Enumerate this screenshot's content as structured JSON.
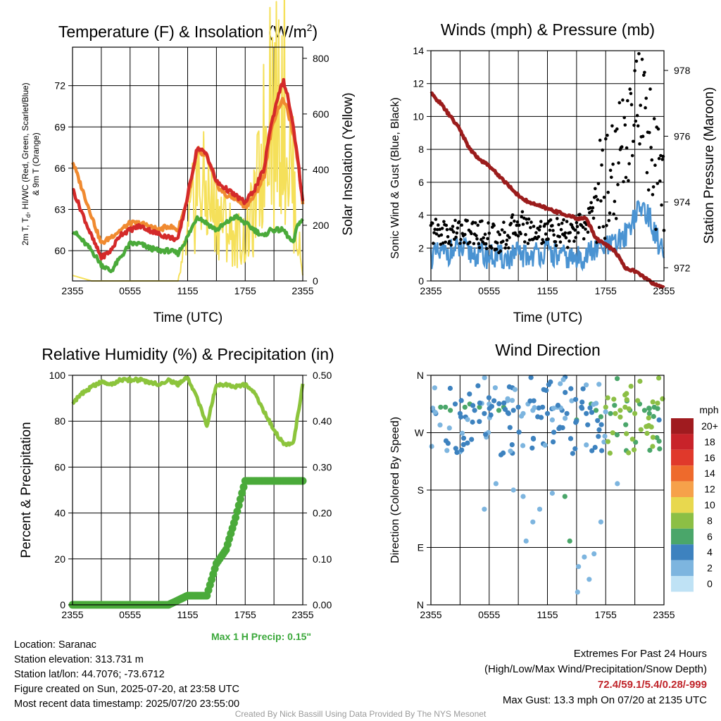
{
  "panels": {
    "temp": {
      "title": "Temperature (F) & Insolation (W/m",
      "title_sup": "2",
      "title_close": ")",
      "ylabel_line1": "2m T, T",
      "ylabel_sub": "d",
      "ylabel_line1_rest": ", HI/WC (Red, Green, Scarlet/Blue)",
      "ylabel_line2": "& 9m T (Orange)",
      "y2label": "Solar Insolation (Yellow)",
      "xlabel": "Time (UTC)",
      "yticks": [
        "72",
        "69",
        "66",
        "63",
        "60"
      ],
      "y2ticks": [
        "800",
        "600",
        "400",
        "200",
        "0"
      ],
      "xticks": [
        "2355",
        "0555",
        "1155",
        "1755",
        "2355"
      ]
    },
    "wind": {
      "title": "Winds (mph) & Pressure (mb)",
      "ylabel": "Sonic Wind & Gust (Blue, Black)",
      "y2label": "Station Pressure (Maroon)",
      "xlabel": "Time (UTC)",
      "yticks": [
        "14",
        "12",
        "10",
        "8",
        "6",
        "4",
        "2",
        "0"
      ],
      "y2ticks": [
        "978",
        "976",
        "974",
        "972"
      ],
      "xticks": [
        "2355",
        "0555",
        "1155",
        "1755",
        "2355"
      ]
    },
    "rh": {
      "title": "Relative Humidity (%) & Precipitation (in)",
      "ylabel": "Percent & Precipitation",
      "yticks": [
        "100",
        "80",
        "60",
        "40",
        "20",
        "0"
      ],
      "y2ticks": [
        "0.50",
        "0.40",
        "0.30",
        "0.20",
        "0.10",
        "0.00"
      ],
      "xticks": [
        "2355",
        "0555",
        "1155",
        "1755",
        "2355"
      ],
      "precip_note": "Max 1 H Precip: 0.15\""
    },
    "dir": {
      "title": "Wind Direction",
      "ylabel": "Direction (Colored By Speed)",
      "yticks": [
        "N",
        "W",
        "S",
        "E",
        "N"
      ],
      "xticks": [
        "2355",
        "0555",
        "1155",
        "1755",
        "2355"
      ],
      "legend_title": "mph",
      "legend_labels": [
        "20+",
        "18",
        "16",
        "14",
        "12",
        "10",
        "8",
        "6",
        "4",
        "2",
        "0"
      ],
      "legend_colors": [
        "#a01b1f",
        "#c8232a",
        "#e0392b",
        "#ee6a2c",
        "#f6a14a",
        "#e8d84e",
        "#8cbf45",
        "#4aa66a",
        "#3d82bf",
        "#7db5df",
        "#bfe2f5"
      ]
    }
  },
  "footer": {
    "location": "Location: Saranac",
    "elevation": "Station elevation: 313.731 m",
    "latlon": "Station lat/lon: 44.7076; -73.6712",
    "created": "Figure created on Sun, 2025-07-20, at 23:58 UTC",
    "recent": "Most recent data timestamp: 2025/07/20 23:55:00",
    "extremes_title": "Extremes For Past 24 Hours",
    "extremes_sub": "(High/Low/Max Wind/Precipitation/Snow Depth)",
    "extremes_values": "72.4/59.1/5.4/0.28/-999",
    "max_gust": "Max Gust: 13.3 mph On 07/20 at 2135 UTC",
    "credit": "Created By Nick Bassill Using Data Provided By The NYS Mesonet"
  },
  "colors": {
    "temp": "#d42a2a",
    "temp9m": "#f08a30",
    "dewpoint": "#4aaa3a",
    "solar": "#f5e05a",
    "wind": "#4a93d2",
    "gust": "#000000",
    "pressure": "#9b1c1c",
    "rh": "#8cc43c",
    "precip": "#4aaa3a"
  },
  "chart_data": [
    {
      "type": "line",
      "title": "Temperature (F) & Insolation (W/m2)",
      "xlabel": "Time (UTC)",
      "ylabel": "2m T, Td, HI/WC (Red, Green, Scarlet/Blue) & 9m T (Orange)",
      "y2label": "Solar Insolation (Yellow)",
      "x": [
        0,
        2,
        3,
        4,
        5,
        6,
        7,
        8,
        9,
        10,
        11,
        12,
        13,
        14,
        15,
        16,
        17,
        18,
        19,
        20,
        20.5,
        21,
        21.5,
        22,
        22.5,
        23,
        23.5,
        24
      ],
      "x_unit": "hours since 2355 UTC",
      "ylim": [
        57.8,
        74.8
      ],
      "y2lim": [
        0,
        840
      ],
      "series": [
        {
          "name": "2m T",
          "axis": "left",
          "values": [
            64.5,
            61.0,
            59.5,
            60.0,
            61.2,
            61.5,
            61.8,
            61.5,
            61.2,
            61.0,
            60.8,
            64.0,
            67.5,
            67.0,
            65.0,
            64.5,
            64.0,
            63.5,
            64.5,
            66.0,
            68.5,
            70.0,
            71.5,
            72.3,
            71.0,
            69.0,
            66.5,
            63.5
          ]
        },
        {
          "name": "9m T",
          "axis": "left",
          "values": [
            66.5,
            62.5,
            60.5,
            61.0,
            61.5,
            62.0,
            62.0,
            61.8,
            61.5,
            61.8,
            61.5,
            63.8,
            67.2,
            66.8,
            64.8,
            64.0,
            63.8,
            63.2,
            64.0,
            65.5,
            68.0,
            69.5,
            70.5,
            71.0,
            70.0,
            68.5,
            66.5,
            63.5
          ]
        },
        {
          "name": "Td",
          "axis": "left",
          "values": [
            61.5,
            60.0,
            59.0,
            58.5,
            59.5,
            60.5,
            60.5,
            60.2,
            60.0,
            60.0,
            59.8,
            61.0,
            62.5,
            62.0,
            61.5,
            62.0,
            62.5,
            62.0,
            61.5,
            61.0,
            61.5,
            61.5,
            61.5,
            61.5,
            61.0,
            60.5,
            62.0,
            62.2
          ]
        },
        {
          "name": "Solar Insolation",
          "axis": "right",
          "values": [
            20,
            0,
            0,
            0,
            0,
            0,
            0,
            0,
            0,
            0,
            0,
            150,
            350,
            300,
            250,
            200,
            150,
            150,
            250,
            500,
            800,
            550,
            650,
            700,
            450,
            350,
            150,
            20
          ]
        }
      ]
    },
    {
      "type": "line",
      "title": "Winds (mph) & Pressure (mb)",
      "xlabel": "Time (UTC)",
      "ylabel": "Sonic Wind & Gust (Blue, Black)",
      "y2label": "Station Pressure (Maroon)",
      "x": [
        0,
        1,
        2,
        3,
        4,
        5,
        6,
        7,
        8,
        9,
        10,
        11,
        12,
        13,
        14,
        15,
        16,
        17,
        18,
        19,
        20,
        21,
        22,
        23,
        24
      ],
      "x_unit": "hours since 2355 UTC",
      "ylim": [
        0,
        14
      ],
      "y2lim": [
        971.6,
        978.6
      ],
      "series": [
        {
          "name": "Sonic Wind",
          "axis": "left",
          "values": [
            1.5,
            1.6,
            1.8,
            1.9,
            1.7,
            1.6,
            1.5,
            1.4,
            1.4,
            1.6,
            1.5,
            1.7,
            1.8,
            1.5,
            1.4,
            1.3,
            1.6,
            1.9,
            2.0,
            2.2,
            2.8,
            4.0,
            4.5,
            3.0,
            1.5
          ]
        },
        {
          "name": "Gust",
          "axis": "left",
          "values": [
            3.0,
            3.0,
            2.8,
            3.1,
            2.9,
            2.9,
            2.7,
            2.6,
            2.8,
            3.6,
            3.1,
            3.0,
            3.1,
            2.9,
            2.8,
            3.1,
            3.4,
            5.0,
            6.0,
            7.0,
            8.5,
            11.5,
            10.0,
            7.0,
            4.5
          ]
        },
        {
          "name": "Station Pressure",
          "axis": "right",
          "values": [
            977.3,
            977.0,
            976.6,
            976.2,
            975.6,
            975.3,
            975.1,
            974.8,
            974.5,
            974.2,
            974.0,
            973.9,
            973.8,
            973.7,
            973.6,
            973.5,
            973.5,
            972.9,
            972.7,
            972.5,
            972.0,
            971.9,
            971.7,
            971.5,
            971.4
          ]
        }
      ]
    },
    {
      "type": "line",
      "title": "Relative Humidity (%) & Precipitation (in)",
      "ylabel": "Percent & Precipitation",
      "x": [
        0,
        1,
        2,
        3,
        4,
        5,
        6,
        7,
        8,
        9,
        10,
        11,
        12,
        13,
        14,
        15,
        16,
        17,
        18,
        19,
        20,
        21,
        22,
        23,
        24
      ],
      "x_unit": "hours since 2355 UTC",
      "ylim": [
        0,
        100
      ],
      "y2lim": [
        0,
        0.5
      ],
      "series": [
        {
          "name": "Relative Humidity",
          "axis": "left",
          "values": [
            88,
            92,
            95,
            97,
            96,
            98,
            98,
            98,
            97,
            96,
            98,
            96,
            99,
            90,
            78,
            96,
            96,
            95,
            96,
            92,
            84,
            76,
            70,
            70,
            96
          ]
        },
        {
          "name": "Precipitation",
          "axis": "right",
          "values": [
            0,
            0,
            0,
            0,
            0,
            0,
            0,
            0,
            0,
            0,
            0,
            0.01,
            0.02,
            0.02,
            0.02,
            0.09,
            0.12,
            0.19,
            0.27,
            0.27,
            0.27,
            0.27,
            0.27,
            0.27,
            0.27
          ]
        }
      ]
    },
    {
      "type": "scatter",
      "title": "Wind Direction",
      "ylabel": "Direction (Colored By Speed)",
      "x_unit": "hours since 2355 UTC",
      "ylim": [
        0,
        360
      ],
      "y_unit": "degrees, N(360) at top, W(270), S(180), E(90), N(0) at bottom",
      "series": [
        {
          "name": "Wind Direction",
          "x": [
            0.2,
            0.5,
            1,
            1.5,
            2,
            2.5,
            3,
            3.5,
            4,
            4.5,
            5,
            5.5,
            6,
            6.5,
            7,
            7.5,
            8,
            8.5,
            9,
            9.5,
            10,
            10.5,
            11,
            11.5,
            12,
            12.5,
            13,
            13.5,
            14,
            14.5,
            15,
            15.5,
            16,
            16.5,
            17,
            17.5,
            18,
            18.5,
            19,
            19.5,
            20,
            20.5,
            21,
            21.5,
            22,
            22.5,
            23,
            23.5,
            5.5,
            8.5,
            9.5,
            10.5,
            11.2,
            12.5,
            14.3,
            15.2,
            15.8,
            16.3,
            16.8,
            17.5,
            19.2,
            6.7,
            9.8,
            3.0,
            13.8,
            15.1
          ],
          "y": [
            305,
            300,
            310,
            310,
            305,
            315,
            300,
            310,
            315,
            305,
            310,
            300,
            315,
            320,
            305,
            310,
            300,
            305,
            310,
            300,
            315,
            305,
            295,
            310,
            300,
            290,
            310,
            305,
            300,
            320,
            290,
            310,
            300,
            315,
            305,
            295,
            310,
            300,
            300,
            305,
            310,
            305,
            300,
            315,
            305,
            300,
            310,
            290,
            150,
            180,
            170,
            130,
            150,
            175,
            100,
            60,
            75,
            40,
            80,
            130,
            190,
            190,
            100,
            240,
            170,
            20
          ],
          "speed": [
            2,
            2,
            3,
            3,
            3,
            2,
            2,
            3,
            3,
            2,
            3,
            2,
            1,
            2,
            3,
            3,
            2,
            2,
            2,
            1,
            1,
            1,
            2,
            2,
            2,
            1,
            1,
            2,
            2,
            1,
            3,
            2,
            2,
            3,
            3,
            3,
            4,
            3,
            4,
            4,
            4,
            3,
            4,
            3,
            3,
            3,
            3,
            2,
            1,
            1,
            1,
            1,
            1,
            1,
            3,
            1,
            1,
            1,
            1,
            1,
            1,
            1,
            1,
            1,
            3,
            1
          ]
        }
      ]
    }
  ]
}
